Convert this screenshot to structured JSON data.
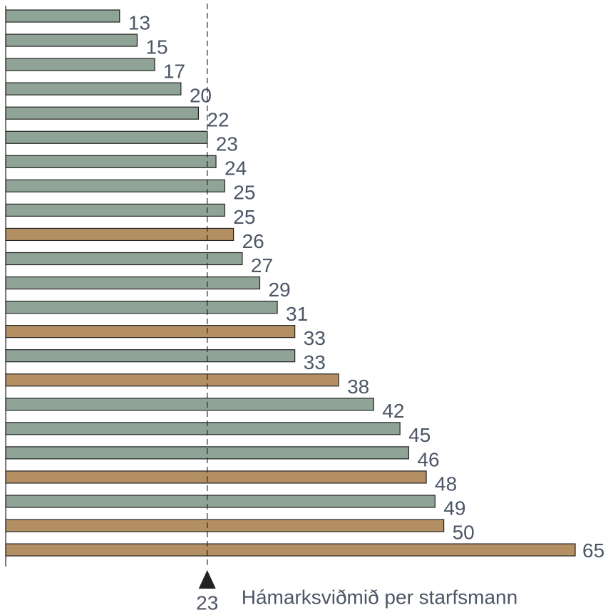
{
  "chart_data": {
    "type": "bar",
    "orientation": "horizontal",
    "values": [
      13,
      15,
      17,
      20,
      22,
      23,
      24,
      25,
      25,
      26,
      27,
      29,
      31,
      33,
      33,
      38,
      42,
      45,
      46,
      48,
      49,
      50,
      65
    ],
    "colors": [
      "#8fa397",
      "#8fa397",
      "#8fa397",
      "#8fa397",
      "#8fa397",
      "#8fa397",
      "#8fa397",
      "#8fa397",
      "#8fa397",
      "#b48f64",
      "#8fa397",
      "#8fa397",
      "#8fa397",
      "#b48f64",
      "#8fa397",
      "#b48f64",
      "#8fa397",
      "#8fa397",
      "#8fa397",
      "#b48f64",
      "#8fa397",
      "#b48f64",
      "#b48f64"
    ],
    "xlim": [
      0,
      65
    ],
    "reference": {
      "value": 23,
      "label": "Hámarksviðmið per starfsmann"
    }
  }
}
